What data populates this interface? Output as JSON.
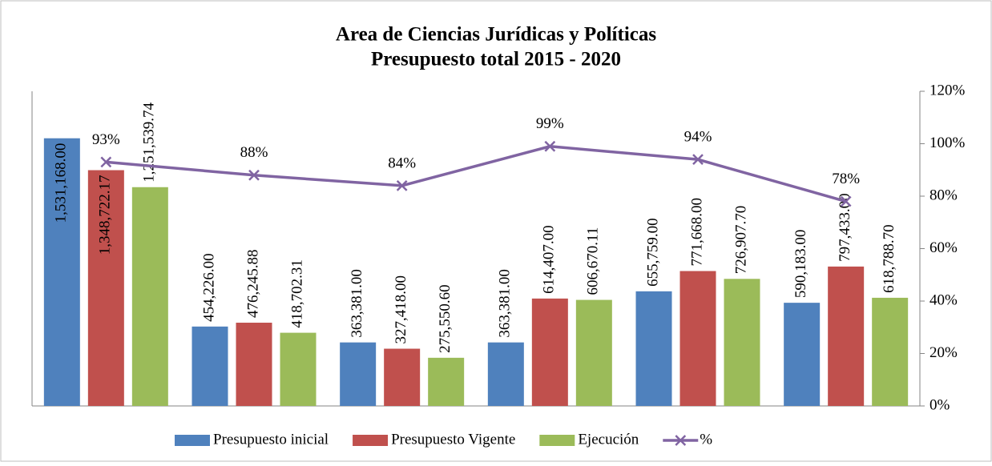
{
  "chart_data": {
    "type": "bar",
    "title": "Area de Ciencias Jurídicas y Políticas",
    "subtitle": "Presupuesto total 2015 - 2020",
    "categories": [
      null,
      null,
      null,
      null,
      null,
      null
    ],
    "ylim": [
      0,
      1800000
    ],
    "y2lim": [
      0,
      120
    ],
    "y2ticks": [
      {
        "value": 0,
        "label": "0%"
      },
      {
        "value": 20,
        "label": "20%"
      },
      {
        "value": 40,
        "label": "40%"
      },
      {
        "value": 60,
        "label": "60%"
      },
      {
        "value": 80,
        "label": "80%"
      },
      {
        "value": 100,
        "label": "100%"
      },
      {
        "value": 120,
        "label": "120%"
      }
    ],
    "series": [
      {
        "name": "Presupuesto inicial",
        "color": "#4f81bd",
        "values": [
          1531168,
          454226,
          363381,
          363381,
          655759,
          590183
        ],
        "value_labels": [
          "1,531,168.00",
          "454,226.00",
          "363,381.00",
          "363,381.00",
          "655,759.00",
          "590,183.00"
        ]
      },
      {
        "name": "Presupuesto Vigente",
        "color": "#c0504d",
        "values": [
          1348722.17,
          476245.88,
          327418,
          614407,
          771668,
          797433
        ],
        "value_labels": [
          "1,348,722.17",
          "476,245.88",
          "327,418.00",
          "614,407.00",
          "771,668.00",
          "797,433.00"
        ]
      },
      {
        "name": "Ejecución",
        "color": "#9bbb59",
        "values": [
          1251539.74,
          418702.31,
          275550.6,
          606670.11,
          726907.7,
          618788.7
        ],
        "value_labels": [
          "1,251,539.74",
          "418,702.31",
          "275,550.60",
          "606,670.11",
          "726,907.70",
          "618,788.70"
        ]
      },
      {
        "name": "%",
        "color": "#8064a2",
        "type": "line",
        "axis": "y2",
        "values": [
          93,
          88,
          84,
          99,
          94,
          78
        ],
        "value_labels": [
          "93%",
          "88%",
          "84%",
          "99%",
          "94%",
          "78%"
        ]
      }
    ],
    "legend": "bottom"
  }
}
